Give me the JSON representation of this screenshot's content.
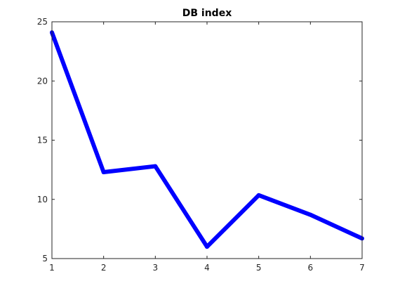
{
  "chart_data": {
    "type": "line",
    "title": "DB index",
    "xlabel": "",
    "ylabel": "",
    "x": [
      1,
      2,
      3,
      4,
      5,
      6,
      7
    ],
    "series": [
      {
        "values": [
          24.1,
          12.3,
          12.8,
          6.0,
          10.35,
          8.7,
          6.7
        ],
        "color": "#0000ff"
      }
    ],
    "xlim": [
      1,
      7
    ],
    "ylim": [
      5,
      25
    ],
    "xticks": [
      1,
      2,
      3,
      4,
      5,
      6,
      7
    ],
    "yticks": [
      5,
      10,
      15,
      20,
      25
    ],
    "grid": false,
    "legend": "none"
  }
}
